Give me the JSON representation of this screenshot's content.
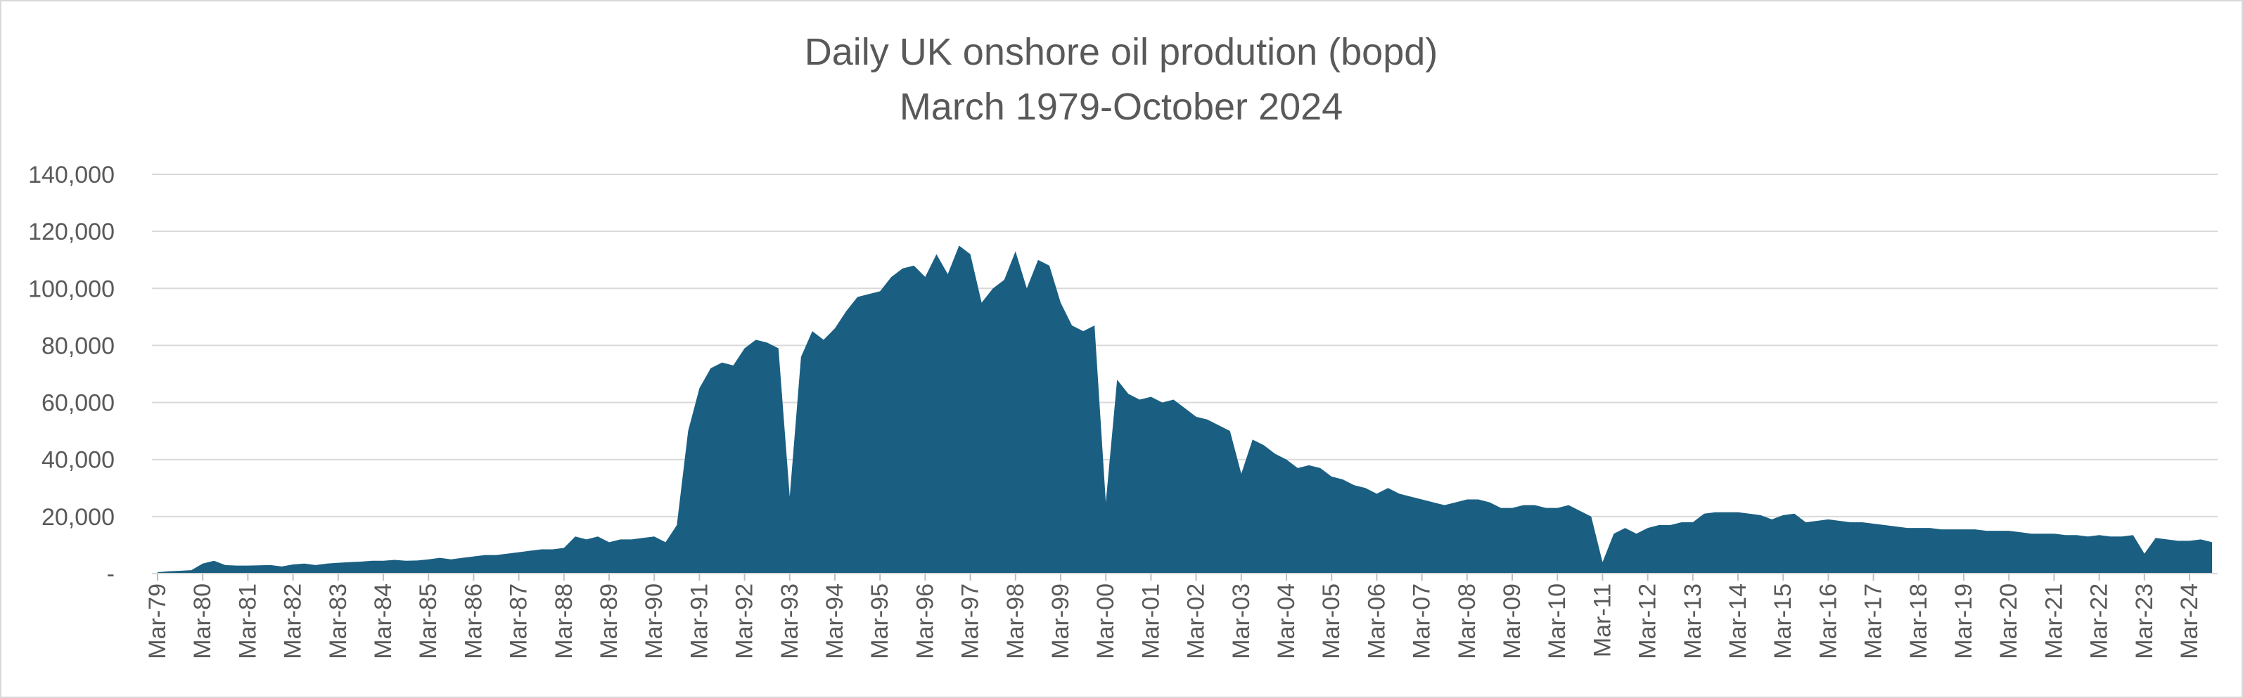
{
  "chart_data": {
    "type": "area",
    "title": "Daily UK onshore oil prodution (bopd)",
    "subtitle": "March 1979-October 2024",
    "color": "#1a5f82",
    "grid": true,
    "ylim": [
      0,
      140000
    ],
    "yticks": [
      {
        "value": 0,
        "label": "-"
      },
      {
        "value": 20000,
        "label": "20,000"
      },
      {
        "value": 40000,
        "label": "40,000"
      },
      {
        "value": 60000,
        "label": "60,000"
      },
      {
        "value": 80000,
        "label": "80,000"
      },
      {
        "value": 100000,
        "label": "100,000"
      },
      {
        "value": 120000,
        "label": "120,000"
      },
      {
        "value": 140000,
        "label": "140,000"
      }
    ],
    "categories": [
      "Mar-79",
      null,
      null,
      null,
      "Mar-80",
      null,
      null,
      null,
      "Mar-81",
      null,
      null,
      null,
      "Mar-82",
      null,
      null,
      null,
      "Mar-83",
      null,
      null,
      null,
      "Mar-84",
      null,
      null,
      null,
      "Mar-85",
      null,
      null,
      null,
      "Mar-86",
      null,
      null,
      null,
      "Mar-87",
      null,
      null,
      null,
      "Mar-88",
      null,
      null,
      null,
      "Mar-89",
      null,
      null,
      null,
      "Mar-90",
      null,
      null,
      null,
      "Mar-91",
      null,
      null,
      null,
      "Mar-92",
      null,
      null,
      null,
      "Mar-93",
      null,
      null,
      null,
      "Mar-94",
      null,
      null,
      null,
      "Mar-95",
      null,
      null,
      null,
      "Mar-96",
      null,
      null,
      null,
      "Mar-97",
      null,
      null,
      null,
      "Mar-98",
      null,
      null,
      null,
      "Mar-99",
      null,
      null,
      null,
      "Mar-00",
      null,
      null,
      null,
      "Mar-01",
      null,
      null,
      null,
      "Mar-02",
      null,
      null,
      null,
      "Mar-03",
      null,
      null,
      null,
      "Mar-04",
      null,
      null,
      null,
      "Mar-05",
      null,
      null,
      null,
      "Mar-06",
      null,
      null,
      null,
      "Mar-07",
      null,
      null,
      null,
      "Mar-08",
      null,
      null,
      null,
      "Mar-09",
      null,
      null,
      null,
      "Mar-10",
      null,
      null,
      null,
      "Mar-11",
      null,
      null,
      null,
      "Mar-12",
      null,
      null,
      null,
      "Mar-13",
      null,
      null,
      null,
      "Mar-14",
      null,
      null,
      null,
      "Mar-15",
      null,
      null,
      null,
      "Mar-16",
      null,
      null,
      null,
      "Mar-17",
      null,
      null,
      null,
      "Mar-18",
      null,
      null,
      null,
      "Mar-19",
      null,
      null,
      null,
      "Mar-20",
      null,
      null,
      null,
      "Mar-21",
      null,
      null,
      null,
      "Mar-22",
      null,
      null,
      null,
      "Mar-23",
      null,
      null,
      null,
      "Mar-24",
      null,
      null
    ],
    "values": [
      500,
      800,
      1000,
      1200,
      3500,
      4500,
      3000,
      2800,
      2800,
      2900,
      3000,
      2500,
      3200,
      3500,
      3000,
      3500,
      3800,
      4000,
      4200,
      4500,
      4500,
      4800,
      4500,
      4600,
      5000,
      5500,
      5000,
      5500,
      6000,
      6500,
      6500,
      7000,
      7500,
      8000,
      8500,
      8500,
      9000,
      13000,
      12000,
      13000,
      11000,
      12000,
      12000,
      12500,
      13000,
      11000,
      17000,
      50000,
      65000,
      72000,
      74000,
      73000,
      79000,
      82000,
      81000,
      79000,
      27000,
      76000,
      85000,
      82000,
      86000,
      92000,
      97000,
      98000,
      99000,
      104000,
      107000,
      108000,
      104000,
      112000,
      105000,
      115000,
      112000,
      95000,
      100000,
      103000,
      113000,
      100000,
      110000,
      108000,
      95000,
      87000,
      85000,
      87000,
      25000,
      68000,
      63000,
      61000,
      62000,
      60000,
      61000,
      58000,
      55000,
      54000,
      52000,
      50000,
      35000,
      47000,
      45000,
      42000,
      40000,
      37000,
      38000,
      37000,
      34000,
      33000,
      31000,
      30000,
      28000,
      30000,
      28000,
      27000,
      26000,
      25000,
      24000,
      25000,
      26000,
      26000,
      25000,
      23000,
      23000,
      24000,
      24000,
      23000,
      23000,
      24000,
      22000,
      20000,
      4000,
      14000,
      16000,
      14000,
      16000,
      17000,
      17000,
      18000,
      18000,
      21000,
      21500,
      21500,
      21500,
      21000,
      20500,
      19000,
      20500,
      21000,
      18000,
      18500,
      19000,
      18500,
      18000,
      18000,
      17500,
      17000,
      16500,
      16000,
      16000,
      16000,
      15500,
      15500,
      15500,
      15500,
      15000,
      15000,
      15000,
      14500,
      14000,
      14000,
      14000,
      13500,
      13500,
      13000,
      13500,
      13000,
      13000,
      13500,
      7000,
      12500,
      12000,
      11500,
      11500,
      12000,
      11000
    ]
  }
}
